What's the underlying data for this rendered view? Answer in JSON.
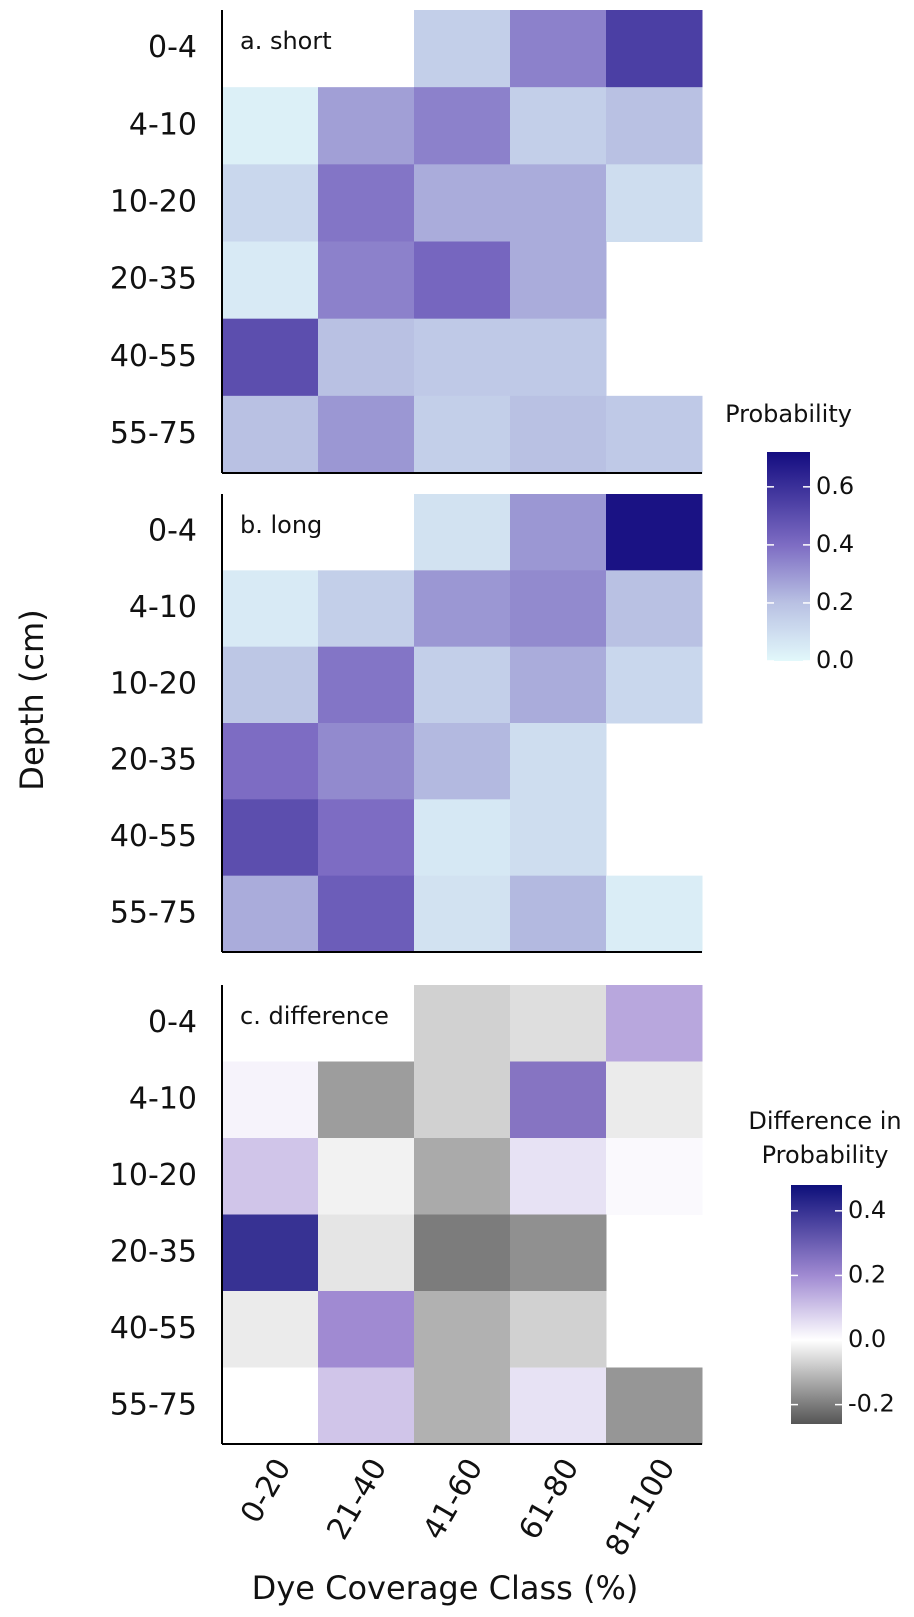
{
  "chart_data": {
    "type": "heatmap",
    "xlabel": "Dye Coverage Class (%)",
    "ylabel": "Depth (cm)",
    "x_categories": [
      "0-20",
      "21-40",
      "41-60",
      "61-80",
      "81-100"
    ],
    "y_categories": [
      "0-4",
      "4-10",
      "10-20",
      "20-35",
      "40-55",
      "55-75"
    ],
    "panels": [
      {
        "title": "a. short",
        "colorbar": 0,
        "values": [
          [
            null,
            null,
            0.15,
            0.35,
            0.55
          ],
          [
            0.03,
            0.28,
            0.35,
            0.15,
            0.2
          ],
          [
            0.12,
            0.38,
            0.25,
            0.25,
            0.1
          ],
          [
            0.05,
            0.35,
            0.42,
            0.25,
            null
          ],
          [
            0.5,
            0.2,
            0.17,
            0.17,
            null
          ],
          [
            0.2,
            0.3,
            0.15,
            0.2,
            0.17
          ]
        ]
      },
      {
        "title": "b. long",
        "colorbar": 0,
        "values": [
          [
            null,
            null,
            0.08,
            0.3,
            0.7
          ],
          [
            0.05,
            0.15,
            0.3,
            0.33,
            0.2
          ],
          [
            0.18,
            0.38,
            0.15,
            0.25,
            0.12
          ],
          [
            0.4,
            0.33,
            0.22,
            0.1,
            null
          ],
          [
            0.5,
            0.4,
            0.06,
            0.1,
            null
          ],
          [
            0.25,
            0.45,
            0.08,
            0.22,
            0.04
          ]
        ]
      },
      {
        "title": "c. difference",
        "colorbar": 1,
        "values": [
          [
            null,
            null,
            -0.07,
            -0.05,
            0.15
          ],
          [
            0.02,
            -0.15,
            -0.07,
            0.25,
            -0.03
          ],
          [
            0.1,
            -0.02,
            -0.13,
            0.05,
            0.01
          ],
          [
            0.4,
            -0.04,
            -0.2,
            -0.17,
            null
          ],
          [
            -0.03,
            0.2,
            -0.12,
            -0.07,
            null
          ],
          [
            0.0,
            0.1,
            -0.12,
            0.05,
            -0.16
          ]
        ]
      }
    ],
    "colorbars": [
      {
        "title": "Probability",
        "lim": [
          0,
          0.72
        ],
        "ticks": [
          {
            "value": 0,
            "label": "0.0"
          },
          0.2,
          0.4,
          0.6
        ],
        "stops": [
          {
            "value": 0,
            "color": "#e2f8fb"
          },
          {
            "value": 0.2,
            "color": "#b9c1e3"
          },
          {
            "value": 0.4,
            "color": "#7d6cc3"
          },
          {
            "value": 0.72,
            "color": "#130c80"
          }
        ]
      },
      {
        "title": "Difference in Probability",
        "lim": [
          -0.26,
          0.48
        ],
        "ticks": [
          -0.2,
          {
            "value": 0,
            "label": "0.0"
          },
          0.2,
          0.4
        ],
        "stops": [
          {
            "value": -0.26,
            "color": "#555555"
          },
          {
            "value": 0,
            "color": "#ffffff"
          },
          {
            "value": 0.2,
            "color": "#a08ad2"
          },
          {
            "value": 0.48,
            "color": "#0d0f7a"
          }
        ]
      }
    ]
  }
}
